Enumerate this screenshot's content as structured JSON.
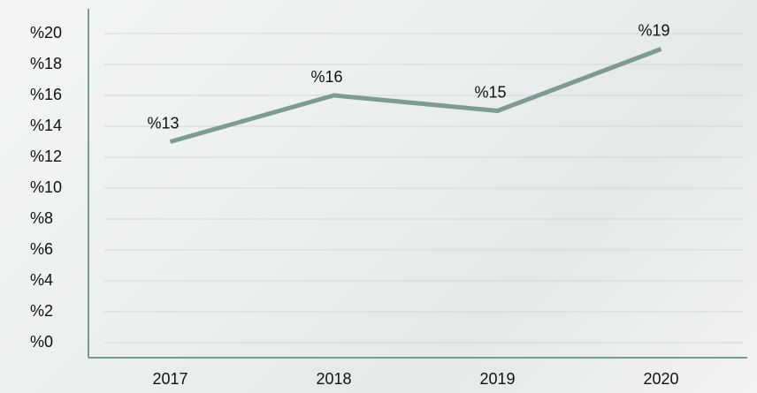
{
  "chart_data": {
    "type": "line",
    "categories": [
      "2017",
      "2018",
      "2019",
      "2020"
    ],
    "series": [
      {
        "color": "#7d9c8e",
        "values": [
          13,
          16,
          15,
          19
        ],
        "value_labels": [
          "%13",
          "%16",
          "%15",
          "%19"
        ]
      }
    ],
    "ylim": [
      0,
      20
    ],
    "yticks": [
      {
        "value": 0,
        "label": "%0"
      },
      {
        "value": 2,
        "label": "%2"
      },
      {
        "value": 4,
        "label": "%4"
      },
      {
        "value": 6,
        "label": "%6"
      },
      {
        "value": 8,
        "label": "%8"
      },
      {
        "value": 10,
        "label": "%10"
      },
      {
        "value": 12,
        "label": "%12"
      },
      {
        "value": 14,
        "label": "%14"
      },
      {
        "value": 16,
        "label": "%16"
      },
      {
        "value": 18,
        "label": "%18"
      },
      {
        "value": 20,
        "label": "%20"
      }
    ],
    "grid": true
  }
}
